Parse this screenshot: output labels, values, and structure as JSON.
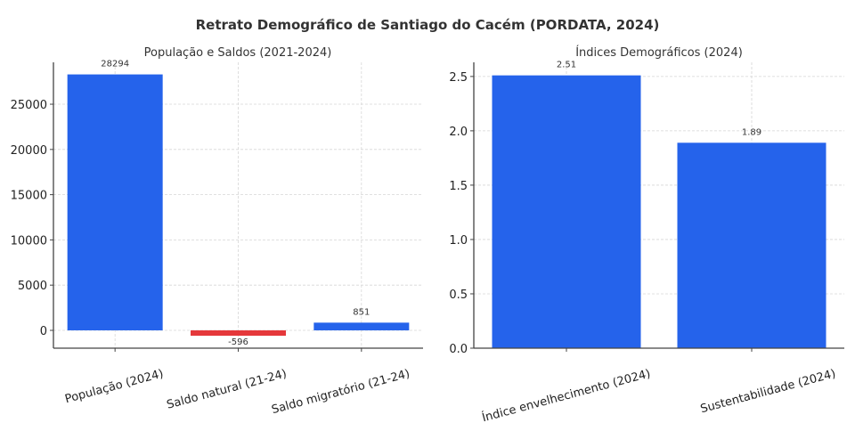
{
  "title": "Retrato Demográfico de Santiago do Cacém (PORDATA, 2024)",
  "colors": {
    "positive": "#2563eb",
    "negative": "#e5383b"
  },
  "chart_data": [
    {
      "type": "bar",
      "title": "População e Saldos (2021-2024)",
      "categories": [
        "População (2024)",
        "Saldo natural (21-24)",
        "Saldo migratório (21-24)"
      ],
      "values": [
        28294,
        -596,
        851
      ],
      "data_labels": [
        "28294",
        "-596",
        "851"
      ],
      "yticks": [
        0,
        5000,
        10000,
        15000,
        20000,
        25000
      ],
      "ytick_labels": [
        "0",
        "5000",
        "10000",
        "15000",
        "20000",
        "25000"
      ],
      "ylim": [
        -1970,
        29630
      ],
      "xlabel": "",
      "ylabel": "",
      "grid": true
    },
    {
      "type": "bar",
      "title": "Índices Demográficos (2024)",
      "categories": [
        "Índice envelhecimento (2024)",
        "Sustentabilidade (2024)"
      ],
      "values": [
        2.51,
        1.89
      ],
      "data_labels": [
        "2.51",
        "1.89"
      ],
      "yticks": [
        0,
        0.5,
        1.0,
        1.5,
        2.0,
        2.5
      ],
      "ytick_labels": [
        "0.0",
        "0.5",
        "1.0",
        "1.5",
        "2.0",
        "2.5"
      ],
      "ylim": [
        0,
        2.63
      ],
      "xlabel": "",
      "ylabel": "",
      "grid": true
    }
  ]
}
